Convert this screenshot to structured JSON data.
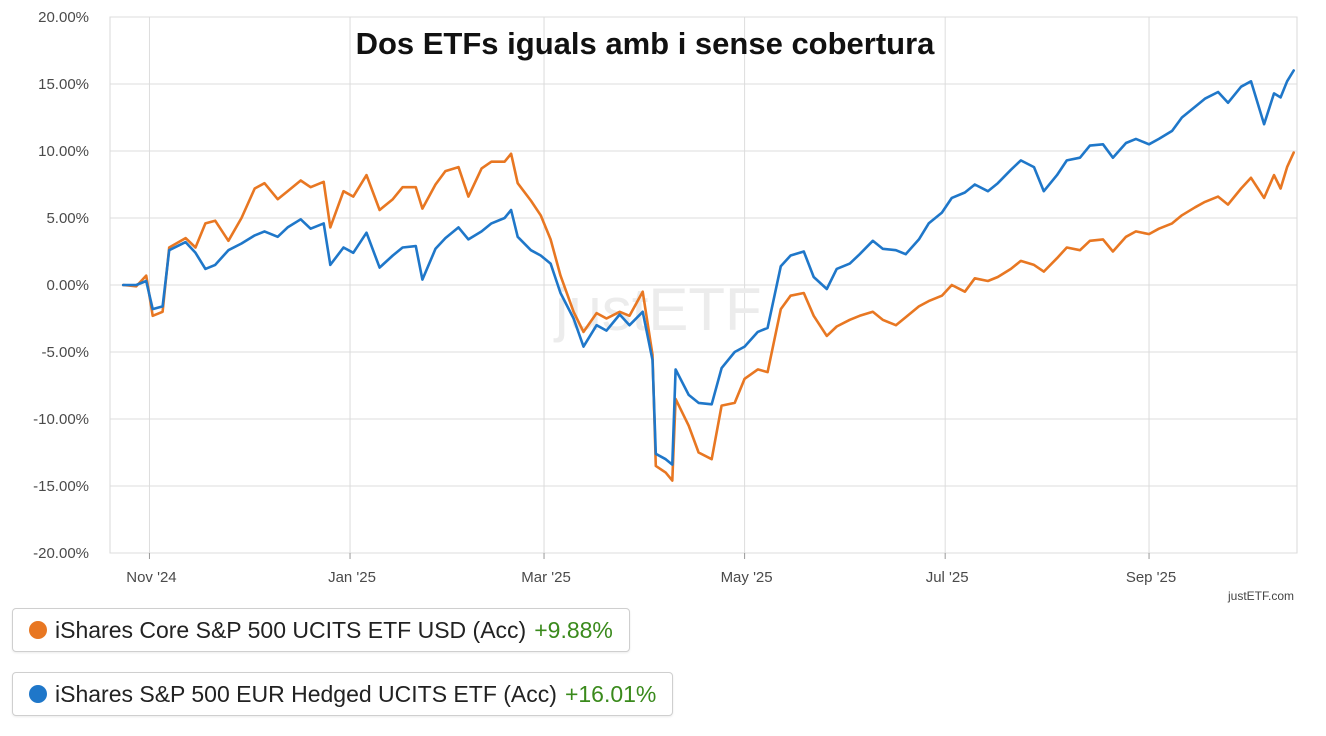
{
  "chart_data": {
    "type": "line",
    "title": "Dos ETFs iguals amb i sense cobertura",
    "x_tick_labels": [
      "Nov '24",
      "Jan '25",
      "Mar '25",
      "May '25",
      "Jul '25",
      "Sep '25"
    ],
    "x_tick_dates": [
      "2024-11-01",
      "2025-01-01",
      "2025-03-01",
      "2025-05-01",
      "2025-07-01",
      "2025-09-01"
    ],
    "x_range": [
      "2024-10-20",
      "2025-10-16"
    ],
    "y_tick_labels": [
      "20.00%",
      "15.00%",
      "10.00%",
      "5.00%",
      "0.00%",
      "-5.00%",
      "-10.00%",
      "-15.00%",
      "-20.00%"
    ],
    "ylim": [
      -20,
      20
    ],
    "ylabel": "",
    "xlabel": "",
    "grid": true,
    "legend_position": "bottom-left",
    "credit": "justETF.com",
    "watermark": "justETF",
    "series": [
      {
        "name": "iShares Core S&P 500 UCITS ETF USD (Acc)",
        "change": "+9.88%",
        "color": "#e87722",
        "points": [
          [
            "2024-10-24",
            0.0
          ],
          [
            "2024-10-28",
            -0.1
          ],
          [
            "2024-10-31",
            0.7
          ],
          [
            "2024-11-02",
            -2.3
          ],
          [
            "2024-11-05",
            -2.0
          ],
          [
            "2024-11-07",
            2.8
          ],
          [
            "2024-11-12",
            3.5
          ],
          [
            "2024-11-15",
            2.8
          ],
          [
            "2024-11-18",
            4.6
          ],
          [
            "2024-11-21",
            4.8
          ],
          [
            "2024-11-25",
            3.3
          ],
          [
            "2024-11-29",
            5.0
          ],
          [
            "2024-12-03",
            7.2
          ],
          [
            "2024-12-06",
            7.6
          ],
          [
            "2024-12-10",
            6.4
          ],
          [
            "2024-12-13",
            7.0
          ],
          [
            "2024-12-17",
            7.8
          ],
          [
            "2024-12-20",
            7.3
          ],
          [
            "2024-12-24",
            7.7
          ],
          [
            "2024-12-26",
            4.3
          ],
          [
            "2024-12-30",
            7.0
          ],
          [
            "2025-01-02",
            6.6
          ],
          [
            "2025-01-06",
            8.2
          ],
          [
            "2025-01-10",
            5.6
          ],
          [
            "2025-01-14",
            6.4
          ],
          [
            "2025-01-17",
            7.3
          ],
          [
            "2025-01-21",
            7.3
          ],
          [
            "2025-01-23",
            5.7
          ],
          [
            "2025-01-27",
            7.5
          ],
          [
            "2025-01-30",
            8.5
          ],
          [
            "2025-02-03",
            8.8
          ],
          [
            "2025-02-06",
            6.6
          ],
          [
            "2025-02-10",
            8.7
          ],
          [
            "2025-02-13",
            9.2
          ],
          [
            "2025-02-17",
            9.2
          ],
          [
            "2025-02-19",
            9.8
          ],
          [
            "2025-02-21",
            7.6
          ],
          [
            "2025-02-25",
            6.3
          ],
          [
            "2025-02-28",
            5.2
          ],
          [
            "2025-03-03",
            3.4
          ],
          [
            "2025-03-06",
            0.7
          ],
          [
            "2025-03-10",
            -2.0
          ],
          [
            "2025-03-13",
            -3.5
          ],
          [
            "2025-03-17",
            -2.1
          ],
          [
            "2025-03-20",
            -2.5
          ],
          [
            "2025-03-24",
            -2.0
          ],
          [
            "2025-03-27",
            -2.3
          ],
          [
            "2025-03-31",
            -0.5
          ],
          [
            "2025-04-03",
            -5.2
          ],
          [
            "2025-04-04",
            -13.5
          ],
          [
            "2025-04-07",
            -14.0
          ],
          [
            "2025-04-09",
            -14.6
          ],
          [
            "2025-04-10",
            -8.5
          ],
          [
            "2025-04-14",
            -10.5
          ],
          [
            "2025-04-17",
            -12.5
          ],
          [
            "2025-04-21",
            -13.0
          ],
          [
            "2025-04-24",
            -9.0
          ],
          [
            "2025-04-28",
            -8.8
          ],
          [
            "2025-05-01",
            -7.0
          ],
          [
            "2025-05-05",
            -6.3
          ],
          [
            "2025-05-08",
            -6.5
          ],
          [
            "2025-05-12",
            -1.8
          ],
          [
            "2025-05-15",
            -0.8
          ],
          [
            "2025-05-19",
            -0.6
          ],
          [
            "2025-05-22",
            -2.3
          ],
          [
            "2025-05-26",
            -3.8
          ],
          [
            "2025-05-29",
            -3.1
          ],
          [
            "2025-06-02",
            -2.6
          ],
          [
            "2025-06-05",
            -2.3
          ],
          [
            "2025-06-09",
            -2.0
          ],
          [
            "2025-06-12",
            -2.6
          ],
          [
            "2025-06-16",
            -3.0
          ],
          [
            "2025-06-19",
            -2.4
          ],
          [
            "2025-06-23",
            -1.6
          ],
          [
            "2025-06-26",
            -1.2
          ],
          [
            "2025-06-30",
            -0.8
          ],
          [
            "2025-07-03",
            0.0
          ],
          [
            "2025-07-07",
            -0.5
          ],
          [
            "2025-07-10",
            0.5
          ],
          [
            "2025-07-14",
            0.3
          ],
          [
            "2025-07-17",
            0.6
          ],
          [
            "2025-07-21",
            1.2
          ],
          [
            "2025-07-24",
            1.8
          ],
          [
            "2025-07-28",
            1.5
          ],
          [
            "2025-07-31",
            1.0
          ],
          [
            "2025-08-04",
            2.0
          ],
          [
            "2025-08-07",
            2.8
          ],
          [
            "2025-08-11",
            2.6
          ],
          [
            "2025-08-14",
            3.3
          ],
          [
            "2025-08-18",
            3.4
          ],
          [
            "2025-08-21",
            2.5
          ],
          [
            "2025-08-25",
            3.6
          ],
          [
            "2025-08-28",
            4.0
          ],
          [
            "2025-09-01",
            3.8
          ],
          [
            "2025-09-04",
            4.2
          ],
          [
            "2025-09-08",
            4.6
          ],
          [
            "2025-09-11",
            5.2
          ],
          [
            "2025-09-15",
            5.8
          ],
          [
            "2025-09-18",
            6.2
          ],
          [
            "2025-09-22",
            6.6
          ],
          [
            "2025-09-25",
            6.0
          ],
          [
            "2025-09-29",
            7.2
          ],
          [
            "2025-10-02",
            8.0
          ],
          [
            "2025-10-06",
            6.5
          ],
          [
            "2025-10-09",
            8.2
          ],
          [
            "2025-10-11",
            7.2
          ],
          [
            "2025-10-13",
            8.8
          ],
          [
            "2025-10-15",
            9.88
          ]
        ]
      },
      {
        "name": "iShares S&P 500 EUR Hedged UCITS ETF (Acc)",
        "change": "+16.01%",
        "color": "#1f77c9",
        "points": [
          [
            "2024-10-24",
            0.0
          ],
          [
            "2024-10-28",
            0.0
          ],
          [
            "2024-10-31",
            0.3
          ],
          [
            "2024-11-02",
            -1.8
          ],
          [
            "2024-11-05",
            -1.6
          ],
          [
            "2024-11-07",
            2.6
          ],
          [
            "2024-11-12",
            3.2
          ],
          [
            "2024-11-15",
            2.4
          ],
          [
            "2024-11-18",
            1.2
          ],
          [
            "2024-11-21",
            1.5
          ],
          [
            "2024-11-25",
            2.6
          ],
          [
            "2024-11-29",
            3.1
          ],
          [
            "2024-12-03",
            3.7
          ],
          [
            "2024-12-06",
            4.0
          ],
          [
            "2024-12-10",
            3.6
          ],
          [
            "2024-12-13",
            4.3
          ],
          [
            "2024-12-17",
            4.9
          ],
          [
            "2024-12-20",
            4.2
          ],
          [
            "2024-12-24",
            4.6
          ],
          [
            "2024-12-26",
            1.5
          ],
          [
            "2024-12-30",
            2.8
          ],
          [
            "2025-01-02",
            2.4
          ],
          [
            "2025-01-06",
            3.9
          ],
          [
            "2025-01-10",
            1.3
          ],
          [
            "2025-01-14",
            2.2
          ],
          [
            "2025-01-17",
            2.8
          ],
          [
            "2025-01-21",
            2.9
          ],
          [
            "2025-01-23",
            0.4
          ],
          [
            "2025-01-27",
            2.7
          ],
          [
            "2025-01-30",
            3.5
          ],
          [
            "2025-02-03",
            4.3
          ],
          [
            "2025-02-06",
            3.4
          ],
          [
            "2025-02-10",
            4.0
          ],
          [
            "2025-02-13",
            4.6
          ],
          [
            "2025-02-17",
            5.0
          ],
          [
            "2025-02-19",
            5.6
          ],
          [
            "2025-02-21",
            3.6
          ],
          [
            "2025-02-25",
            2.6
          ],
          [
            "2025-02-28",
            2.2
          ],
          [
            "2025-03-03",
            1.6
          ],
          [
            "2025-03-06",
            -0.6
          ],
          [
            "2025-03-10",
            -2.5
          ],
          [
            "2025-03-13",
            -4.6
          ],
          [
            "2025-03-17",
            -3.0
          ],
          [
            "2025-03-20",
            -3.4
          ],
          [
            "2025-03-24",
            -2.2
          ],
          [
            "2025-03-27",
            -3.0
          ],
          [
            "2025-03-31",
            -2.0
          ],
          [
            "2025-04-03",
            -5.6
          ],
          [
            "2025-04-04",
            -12.6
          ],
          [
            "2025-04-07",
            -13.0
          ],
          [
            "2025-04-09",
            -13.4
          ],
          [
            "2025-04-10",
            -6.3
          ],
          [
            "2025-04-14",
            -8.2
          ],
          [
            "2025-04-17",
            -8.8
          ],
          [
            "2025-04-21",
            -8.9
          ],
          [
            "2025-04-24",
            -6.2
          ],
          [
            "2025-04-28",
            -5.0
          ],
          [
            "2025-05-01",
            -4.6
          ],
          [
            "2025-05-05",
            -3.5
          ],
          [
            "2025-05-08",
            -3.2
          ],
          [
            "2025-05-12",
            1.4
          ],
          [
            "2025-05-15",
            2.2
          ],
          [
            "2025-05-19",
            2.5
          ],
          [
            "2025-05-22",
            0.6
          ],
          [
            "2025-05-26",
            -0.3
          ],
          [
            "2025-05-29",
            1.2
          ],
          [
            "2025-06-02",
            1.6
          ],
          [
            "2025-06-05",
            2.3
          ],
          [
            "2025-06-09",
            3.3
          ],
          [
            "2025-06-12",
            2.7
          ],
          [
            "2025-06-16",
            2.6
          ],
          [
            "2025-06-19",
            2.3
          ],
          [
            "2025-06-23",
            3.4
          ],
          [
            "2025-06-26",
            4.6
          ],
          [
            "2025-06-30",
            5.4
          ],
          [
            "2025-07-03",
            6.5
          ],
          [
            "2025-07-07",
            6.9
          ],
          [
            "2025-07-10",
            7.5
          ],
          [
            "2025-07-14",
            7.0
          ],
          [
            "2025-07-17",
            7.6
          ],
          [
            "2025-07-21",
            8.6
          ],
          [
            "2025-07-24",
            9.3
          ],
          [
            "2025-07-28",
            8.8
          ],
          [
            "2025-07-31",
            7.0
          ],
          [
            "2025-08-04",
            8.2
          ],
          [
            "2025-08-07",
            9.3
          ],
          [
            "2025-08-11",
            9.5
          ],
          [
            "2025-08-14",
            10.4
          ],
          [
            "2025-08-18",
            10.5
          ],
          [
            "2025-08-21",
            9.5
          ],
          [
            "2025-08-25",
            10.6
          ],
          [
            "2025-08-28",
            10.9
          ],
          [
            "2025-09-01",
            10.5
          ],
          [
            "2025-09-04",
            10.9
          ],
          [
            "2025-09-08",
            11.5
          ],
          [
            "2025-09-11",
            12.5
          ],
          [
            "2025-09-15",
            13.3
          ],
          [
            "2025-09-18",
            13.9
          ],
          [
            "2025-09-22",
            14.4
          ],
          [
            "2025-09-25",
            13.6
          ],
          [
            "2025-09-29",
            14.8
          ],
          [
            "2025-10-02",
            15.2
          ],
          [
            "2025-10-06",
            12.0
          ],
          [
            "2025-10-09",
            14.3
          ],
          [
            "2025-10-11",
            14.0
          ],
          [
            "2025-10-13",
            15.2
          ],
          [
            "2025-10-15",
            16.01
          ]
        ]
      }
    ]
  }
}
